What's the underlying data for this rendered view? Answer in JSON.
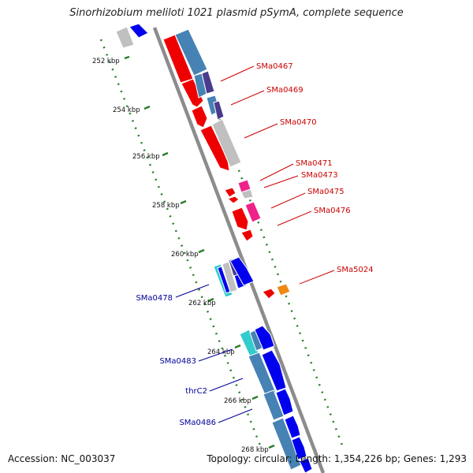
{
  "title": "Sinorhizobium meliloti 1021 plasmid pSymA, complete sequence",
  "footer": {
    "accession": "Accession: NC_003037",
    "summary": "Topology: circular; Length: 1,354,226 bp; Genes: 1,293"
  },
  "colors": {
    "forward_label": "#cc0000",
    "reverse_label": "#000099",
    "backbone": "#8c8c8c",
    "tick": "#2a7d2a",
    "red": "#ee0000",
    "blue": "#0000ee",
    "steel": "#4682b4",
    "gray": "#c0c0c0",
    "purple": "#4b3b8c",
    "pink": "#ee2288",
    "cyan": "#33cccc",
    "orange": "#ee8811"
  },
  "ruler_labels": [
    "252 kbp",
    "254 kbp",
    "256 kbp",
    "258 kbp",
    "260 kbp",
    "262 kbp",
    "264 kbp",
    "266 kbp",
    "268 kbp"
  ],
  "gene_labels": {
    "forward": [
      "SMa0467",
      "SMa0469",
      "SMa0470",
      "SMa0471",
      "SMa0473",
      "SMa0475",
      "SMa0476",
      "SMa5024"
    ],
    "reverse": [
      "SMa0478",
      "SMa0483",
      "thrC2",
      "SMa0486"
    ]
  }
}
